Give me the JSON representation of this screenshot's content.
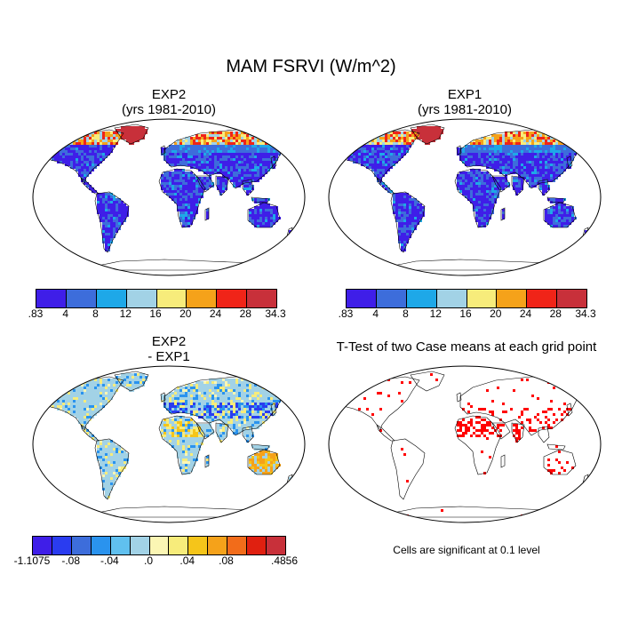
{
  "title": "MAM FSRVI (W/m^2)",
  "panels": {
    "exp2": {
      "title_line1": "EXP2",
      "title_line2": "(yrs 1981-2010)"
    },
    "exp1": {
      "title_line1": "EXP1",
      "title_line2": "(yrs 1981-2010)"
    },
    "diff": {
      "title_line1": "EXP2",
      "title_line2": "- EXP1"
    },
    "ttest": {
      "title_line1": "T-Test of two Case means at each grid point"
    }
  },
  "colorbar_main": {
    "colors": [
      "#3f1ee8",
      "#3d6ddb",
      "#1ea8e8",
      "#a2d2e6",
      "#f7ec7b",
      "#f5a21a",
      "#f02418",
      "#c8303a"
    ],
    "labels": [
      ".83",
      "4",
      "8",
      "12",
      "16",
      "20",
      "24",
      "28",
      "34.3"
    ]
  },
  "colorbar_diff": {
    "colors": [
      "#3f1ee8",
      "#2a3cf0",
      "#3d6ddb",
      "#2a93ee",
      "#60c0ef",
      "#a2d2e6",
      "#fbf6b4",
      "#f7ec7b",
      "#f5c51a",
      "#f5a21a",
      "#f26c1a",
      "#e02010",
      "#c8303a"
    ],
    "labels": [
      "-1.1075",
      "-.08",
      "-.04",
      ".0",
      ".04",
      ".08",
      ".4856"
    ]
  },
  "footnote": "Cells are significant at 0.1 level",
  "colors": {
    "ocean": "#ffffff",
    "sig_cells": "#ff0000",
    "outline": "#000000"
  }
}
